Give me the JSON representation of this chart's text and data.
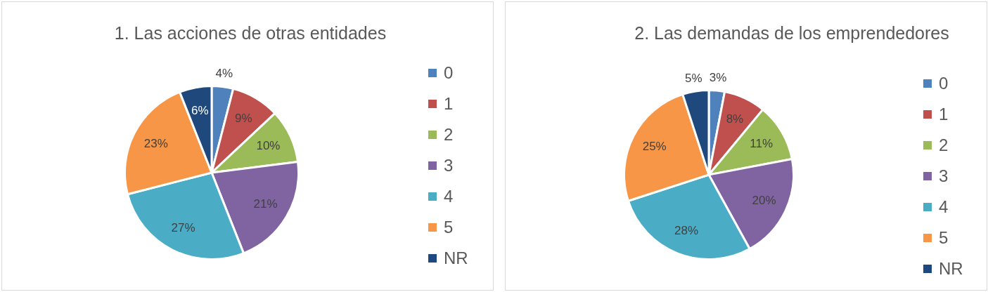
{
  "chart_data": [
    {
      "type": "pie",
      "title": "1. Las acciones de otras entidades",
      "categories": [
        "0",
        "1",
        "2",
        "3",
        "4",
        "5",
        "NR"
      ],
      "values": [
        4,
        9,
        10,
        21,
        27,
        23,
        6
      ],
      "value_labels": [
        "4%",
        "9%",
        "10%",
        "21%",
        "27%",
        "23%",
        "6%"
      ],
      "colors": [
        "#4f81bd",
        "#c0504d",
        "#9bbb59",
        "#8064a2",
        "#4bacc6",
        "#f79646",
        "#1f497d"
      ],
      "legend": "right"
    },
    {
      "type": "pie",
      "title": "2. Las demandas de los emprendedores",
      "categories": [
        "0",
        "1",
        "2",
        "3",
        "4",
        "5",
        "NR"
      ],
      "values": [
        3,
        8,
        11,
        20,
        28,
        25,
        5
      ],
      "value_labels": [
        "3%",
        "8%",
        "11%",
        "20%",
        "28%",
        "25%",
        "5%"
      ],
      "colors": [
        "#4f81bd",
        "#c0504d",
        "#9bbb59",
        "#8064a2",
        "#4bacc6",
        "#f79646",
        "#1f497d"
      ],
      "legend": "right"
    }
  ]
}
